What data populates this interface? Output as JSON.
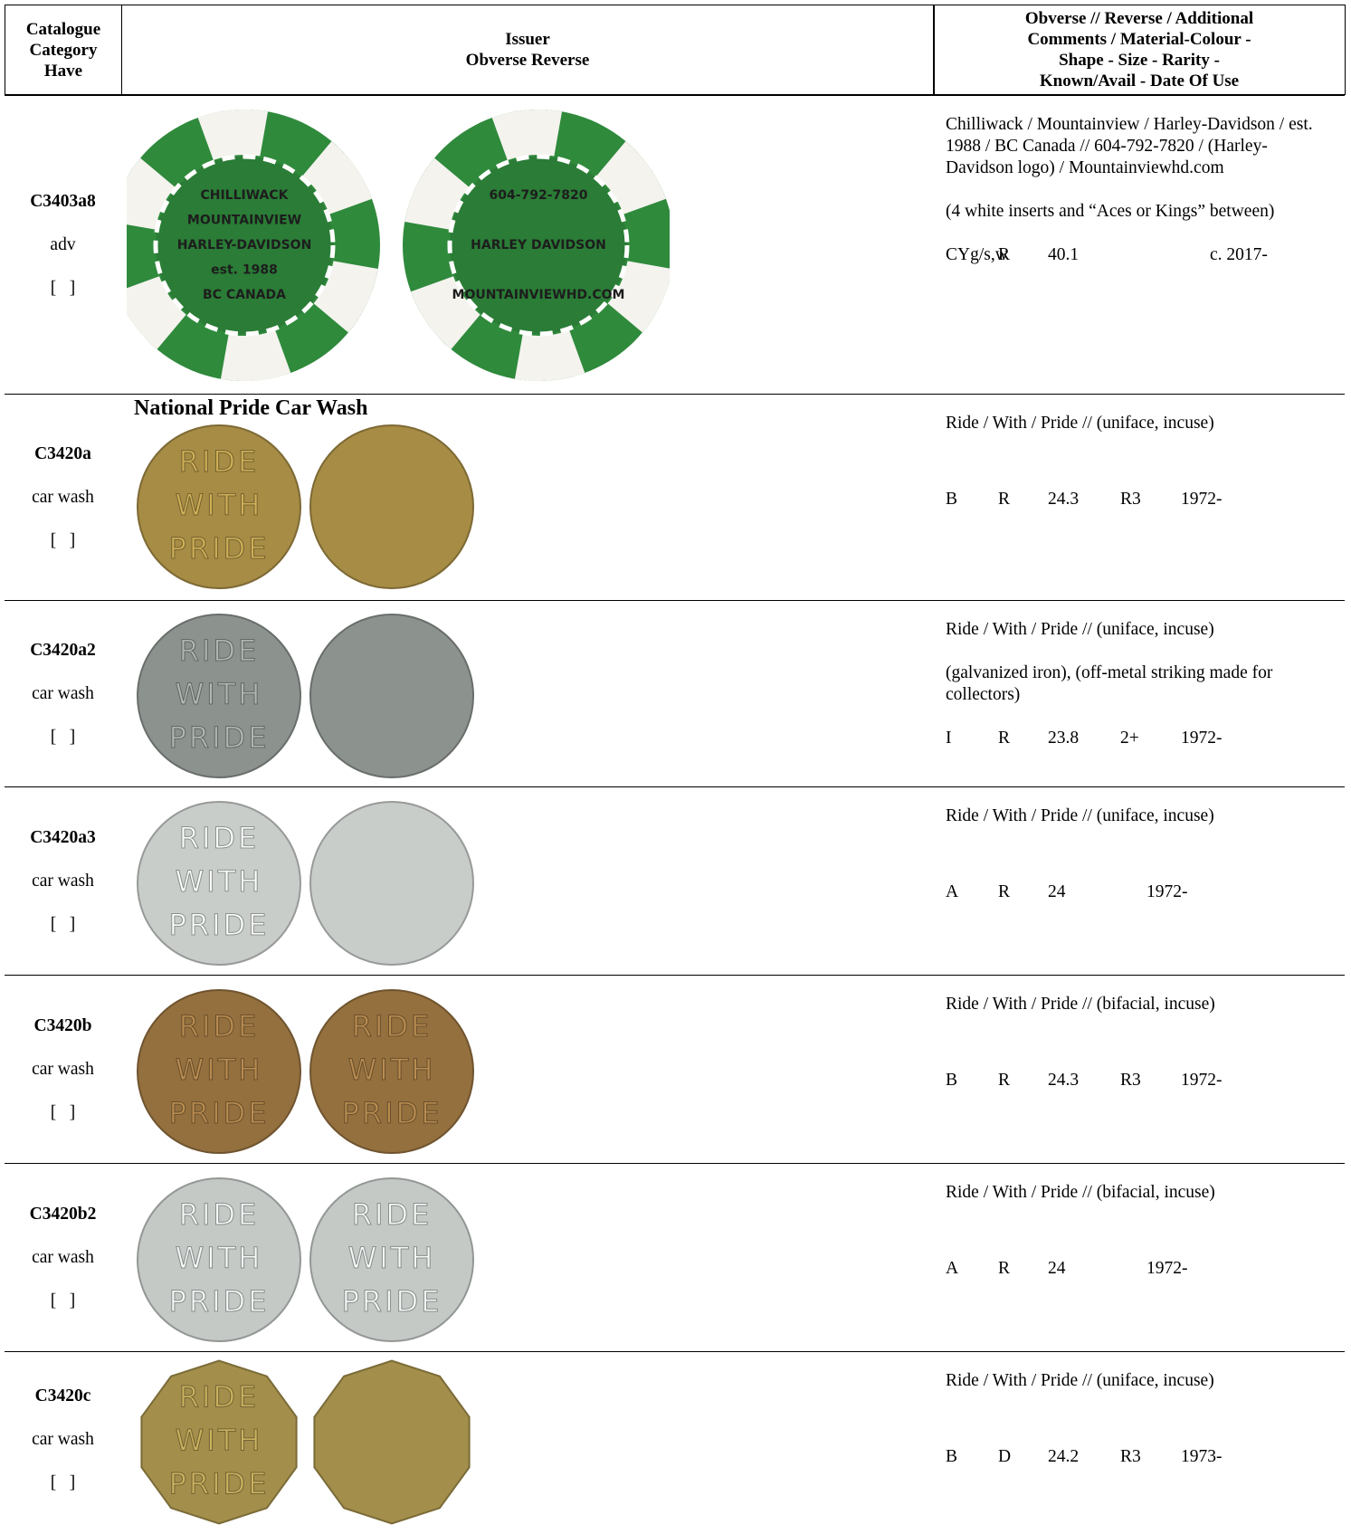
{
  "header": {
    "code": [
      "Catalogue",
      "Category",
      "Have"
    ],
    "issuer": [
      "Issuer",
      "Obverse  Reverse"
    ],
    "details": [
      "Obverse // Reverse  / Additional",
      "Comments / Material-Colour -",
      "Shape -  Size -  Rarity -",
      "Known/Avail - Date Of Use"
    ]
  },
  "rows": [
    {
      "code": "C3403a8",
      "category": "adv",
      "have": "[   ]",
      "coin": {
        "shape": "chip",
        "color": "#2f8a3c",
        "obverse": [
          "CHILLIWACK",
          "MOUNTAINVIEW",
          "HARLEY-DAVIDSON",
          "est. 1988",
          "BC CANADA"
        ],
        "reverse": [
          "604-792-7820",
          "HARLEY DAVIDSON",
          "MOUNTAINVIEWHD.COM"
        ]
      },
      "description": [
        "Chilliwack / Mountainview / Harley-Davidson / est. 1988 / BC Canada  //  604-792-7820 / (Harley-Davidson logo) / Mountainviewhd.com",
        "(4 white inserts and “Aces or Kings” between)"
      ],
      "spec": {
        "material": "CYg/s,w",
        "shape": "R",
        "size": "40.1",
        "date": "c. 2017-"
      }
    },
    {
      "code": "C3420a",
      "category": "car wash",
      "have": "[   ]",
      "issuer": "National Pride Car Wash",
      "coin": {
        "shape": "round",
        "color": "#a68c45",
        "obverse": [
          "RIDE",
          "WITH",
          "PRIDE"
        ]
      },
      "description": [
        "Ride / With / Pride  //  (uniface, incuse)"
      ],
      "spec": {
        "material": "B",
        "shape": "R",
        "size": "24.3",
        "rarity": "R3",
        "date": "1972-"
      }
    },
    {
      "code": "C3420a2",
      "category": "car wash",
      "have": "[   ]",
      "coin": {
        "shape": "round",
        "color": "#8c938f",
        "obverse": [
          "RIDE",
          "WITH",
          "PRIDE"
        ]
      },
      "description": [
        "Ride / With / Pride  //  (uniface, incuse)",
        "(galvanized iron), (off-metal striking made for collectors)"
      ],
      "spec": {
        "material": "I",
        "shape": "R",
        "size": "23.8",
        "rarity": "2+",
        "date": "1972-"
      }
    },
    {
      "code": "C3420a3",
      "category": "car wash",
      "have": "[   ]",
      "coin": {
        "shape": "round",
        "color": "#c9cdca",
        "obverse": [
          "RIDE",
          "WITH",
          "PRIDE"
        ]
      },
      "description": [
        "Ride / With / Pride  //  (uniface, incuse)"
      ],
      "spec": {
        "material": "A",
        "shape": "R",
        "size": "24",
        "date": "1972-"
      }
    },
    {
      "code": "C3420b",
      "category": "car wash",
      "have": "[   ]",
      "coin": {
        "shape": "round",
        "color": "#94703f",
        "obverse": [
          "RIDE",
          "WITH",
          "PRIDE"
        ],
        "reverse": [
          "RIDE",
          "WITH",
          "PRIDE"
        ]
      },
      "description": [
        "Ride / With / Pride  //  (bifacial, incuse)"
      ],
      "spec": {
        "material": "B",
        "shape": "R",
        "size": "24.3",
        "rarity": "R3",
        "date": "1972-"
      }
    },
    {
      "code": "C3420b2",
      "category": "car wash",
      "have": "[   ]",
      "coin": {
        "shape": "round",
        "color": "#c4c9c6",
        "obverse": [
          "RIDE",
          "WITH",
          "PRIDE"
        ],
        "reverse": [
          "RIDE",
          "WITH",
          "PRIDE"
        ]
      },
      "description": [
        "Ride / With / Pride  //  (bifacial, incuse)"
      ],
      "spec": {
        "material": "A",
        "shape": "R",
        "size": "24",
        "date": "1972-"
      }
    },
    {
      "code": "C3420c",
      "category": "car wash",
      "have": "[   ]",
      "coin": {
        "shape": "decagon",
        "color": "#a38e4b",
        "obverse": [
          "RIDE",
          "WITH",
          "PRIDE"
        ]
      },
      "description": [
        "Ride / With / Pride  //  (uniface, incuse)"
      ],
      "spec": {
        "material": "B",
        "shape": "D",
        "size": "24.2",
        "rarity": "R3",
        "date": "1973-"
      }
    }
  ]
}
